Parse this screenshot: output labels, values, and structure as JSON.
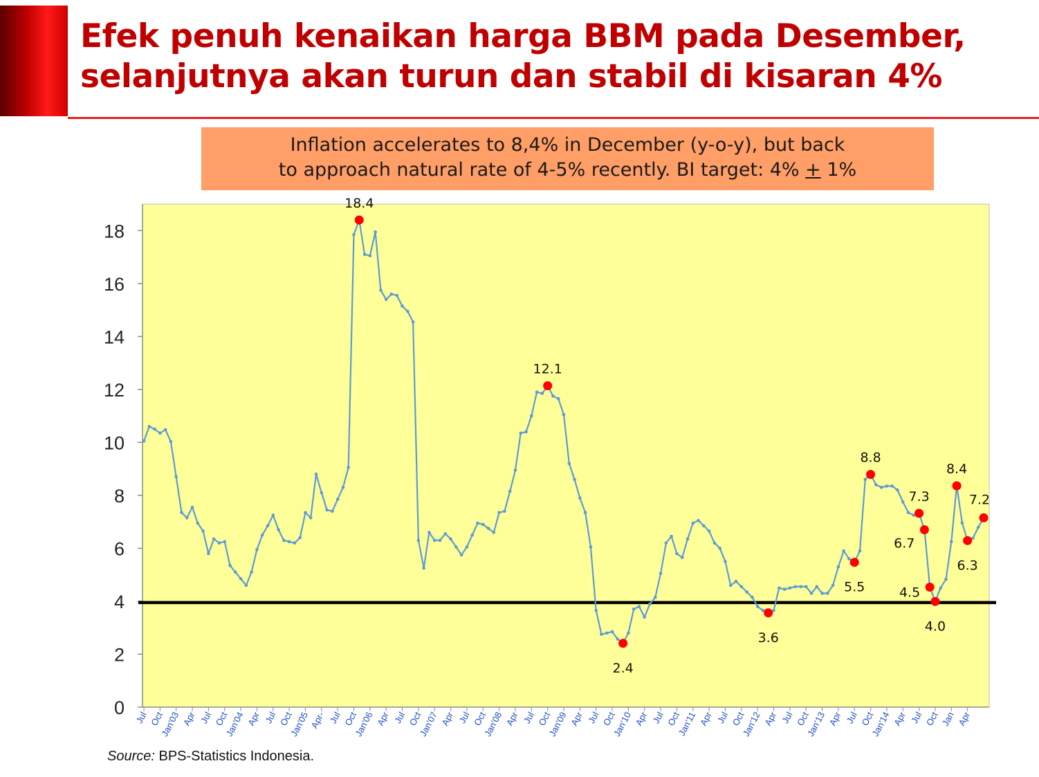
{
  "title": "Efek penuh kenaikan harga BBM pada Desember,\nselanjutnya akan turun dan stabil di kisaran 4%",
  "callout": {
    "line1": "Inflation accelerates to 8,4% in December (y-o-y), but back",
    "line2_prefix": "to approach natural  rate of 4-5% recently. BI target: 4% ",
    "line2_underlined": "+",
    "line2_suffix": " 1%"
  },
  "source": {
    "label": "Source:",
    "text": " BPS-Statistics Indonesia."
  },
  "colors": {
    "title": "#c00000",
    "callout_bg": "#ff9e66",
    "plot_bg": "#ffff99",
    "series_line": "#5b9bd5",
    "highlight_marker": "#ff0000",
    "reference_line": "#000000",
    "x_tick_label": "#1f4ec8"
  },
  "chart_data": {
    "type": "line",
    "title": "",
    "xlabel": "",
    "ylabel": "",
    "ylim": [
      0,
      19
    ],
    "yticks": [
      0,
      2,
      4,
      6,
      8,
      10,
      12,
      14,
      16,
      18
    ],
    "grid": false,
    "x_tick_labels": [
      "Jul",
      "Oct",
      "Jan'03",
      "Apr",
      "Jul",
      "Oct",
      "Jan'04",
      "Apr",
      "Jul",
      "Oct",
      "Jan'05",
      "Apr-",
      "Jul",
      "Oct",
      "Jan'06",
      "Apr",
      "Jul",
      "Oct",
      "Jan'07",
      "Apr",
      "Jul",
      "Oct",
      "Jan'08",
      "Apr",
      "Jul",
      "Oct",
      "Jan'09",
      "Apr",
      "Jul",
      "Oct",
      "Jan'10",
      "Apr",
      "Jul",
      "Oct",
      "Jan'11",
      "Apr",
      "Jul",
      "Oct",
      "Jan'12",
      "Apr",
      "Jul",
      "Oct",
      "Jan'13",
      "Apr",
      "Jul",
      "Oct",
      "Jan'14",
      "Apr",
      "Jul",
      "Oct",
      "Jan",
      "Apr"
    ],
    "series": [
      {
        "values": [
          10.05,
          10.6,
          10.5,
          10.35,
          10.48,
          10.03,
          8.7,
          7.35,
          7.15,
          7.55,
          6.95,
          6.65,
          5.8,
          6.35,
          6.2,
          6.25,
          5.35,
          5.1,
          4.85,
          4.6,
          5.1,
          5.95,
          6.5,
          6.85,
          7.25,
          6.7,
          6.3,
          6.25,
          6.2,
          6.4,
          7.35,
          7.15,
          8.8,
          8.1,
          7.45,
          7.4,
          7.85,
          8.3,
          9.05,
          17.85,
          18.4,
          17.1,
          17.05,
          17.95,
          15.75,
          15.4,
          15.6,
          15.55,
          15.15,
          14.95,
          14.55,
          6.3,
          5.25,
          6.6,
          6.3,
          6.3,
          6.55,
          6.35,
          6.05,
          5.75,
          6.05,
          6.5,
          6.95,
          6.9,
          6.75,
          6.6,
          7.35,
          7.4,
          8.15,
          8.95,
          10.35,
          10.4,
          11.0,
          11.9,
          11.85,
          12.14,
          11.75,
          11.65,
          11.05,
          9.2,
          8.6,
          7.9,
          7.35,
          6.05,
          3.65,
          2.75,
          2.8,
          2.85,
          2.57,
          2.41,
          2.8,
          3.7,
          3.8,
          3.4,
          3.9,
          4.15,
          5.05,
          6.2,
          6.45,
          5.8,
          5.65,
          6.35,
          6.95,
          7.05,
          6.85,
          6.65,
          6.2,
          6.0,
          5.5,
          4.6,
          4.75,
          4.55,
          4.35,
          4.15,
          3.8,
          3.65,
          3.56,
          3.65,
          4.5,
          4.45,
          4.5,
          4.55,
          4.55,
          4.55,
          4.3,
          4.55,
          4.3,
          4.3,
          4.6,
          5.3,
          5.9,
          5.6,
          5.47,
          5.9,
          8.6,
          8.79,
          8.4,
          8.3,
          8.35,
          8.35,
          8.2,
          7.75,
          7.35,
          7.25,
          7.32,
          6.7,
          4.53,
          3.99,
          4.5,
          4.83,
          6.25,
          8.36,
          6.96,
          6.29,
          6.38,
          6.79,
          7.15
        ]
      }
    ],
    "highlighted_points": [
      {
        "label": "18.4",
        "value": 18.4
      },
      {
        "label": "12.1",
        "value": 12.14
      },
      {
        "label": "2.4",
        "value": 2.41
      },
      {
        "label": "3.6",
        "value": 3.56
      },
      {
        "label": "5.5",
        "value": 5.47
      },
      {
        "label": "8.8",
        "value": 8.79
      },
      {
        "label": "7.3",
        "value": 7.32
      },
      {
        "label": "6.7",
        "value": 6.7
      },
      {
        "label": "4.5",
        "value": 4.53
      },
      {
        "label": "4.0",
        "value": 3.99
      },
      {
        "label": "8.4",
        "value": 8.36
      },
      {
        "label": "6.3",
        "value": 6.29
      },
      {
        "label": "7.2",
        "value": 7.15
      }
    ],
    "reference_line": {
      "value": 3.95
    },
    "legend": "none"
  }
}
